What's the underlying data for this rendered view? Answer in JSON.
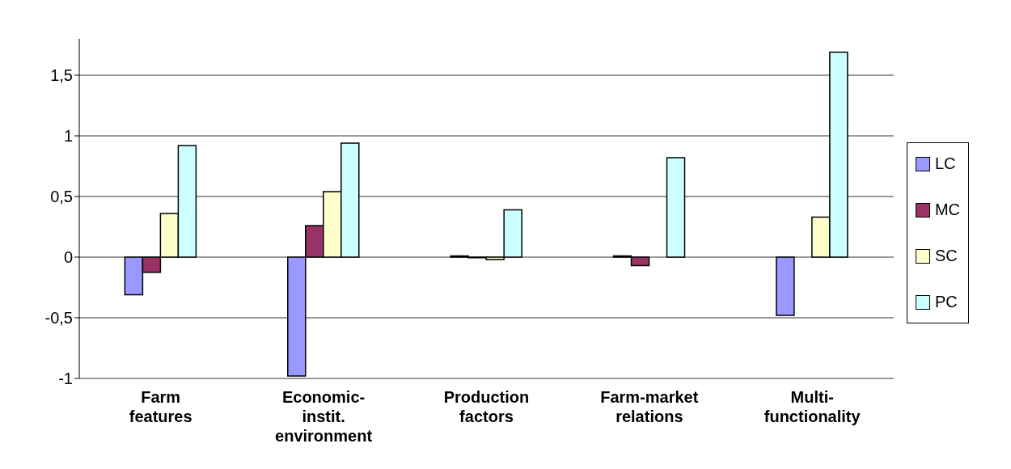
{
  "chart_data": {
    "type": "bar",
    "categories": [
      "Farm features",
      "Economic-instit. environment",
      "Production factors",
      "Farm-market relations",
      "Multi-functionality"
    ],
    "series": [
      {
        "name": "LC",
        "color": "#9999ff",
        "values": [
          -0.31,
          -0.98,
          0.01,
          0.01,
          -0.48
        ]
      },
      {
        "name": "MC",
        "color": "#993366",
        "values": [
          -0.125,
          0.26,
          -0.005,
          -0.07,
          null
        ]
      },
      {
        "name": "SC",
        "color": "#ffffcc",
        "values": [
          0.36,
          0.54,
          -0.02,
          null,
          0.33
        ]
      },
      {
        "name": "PC",
        "color": "#ccffff",
        "values": [
          0.92,
          0.94,
          0.39,
          0.82,
          1.69
        ]
      }
    ],
    "ylim": [
      -1,
      1.8
    ],
    "yticks": [
      {
        "value": -1,
        "label": "-1"
      },
      {
        "value": -0.5,
        "label": "-0,5"
      },
      {
        "value": 0,
        "label": "0"
      },
      {
        "value": 0.5,
        "label": "0,5"
      },
      {
        "value": 1,
        "label": "1"
      },
      {
        "value": 1.5,
        "label": "1,5"
      }
    ],
    "grid": "y",
    "legend": "right"
  }
}
